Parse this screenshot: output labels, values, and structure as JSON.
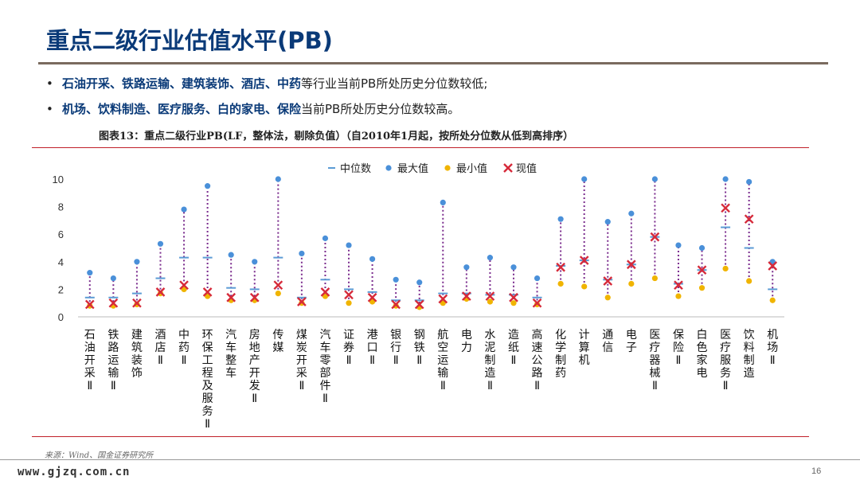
{
  "header": {
    "title": "重点二级行业估值水平(PB)",
    "bullets": [
      {
        "marker": "•",
        "highlight": "石油开采、铁路运输、建筑装饰、酒店、中药",
        "rest": "等行业当前PB所处历史分位数较低;"
      },
      {
        "marker": "•",
        "highlight": "机场、饮料制造、医疗服务、白的家电、保险",
        "rest": "当前PB所处历史分位数较高。"
      }
    ],
    "caption": "图表13：重点二级行业PB(LF，整体法，剔除负值）（自2010年1月起，按所处分位数从低到高排序）"
  },
  "footer": {
    "source": "来源：Wind、国金证券研究所",
    "site": "www.gjzq.com.cn",
    "page_number": "16"
  },
  "colors": {
    "title": "#0a3a78",
    "median": "#5b9bd5",
    "max": "#4a90d9",
    "min": "#f0b400",
    "current": "#d62a3a",
    "range": "#7b2d8e",
    "rule": "#c0202a"
  },
  "chart_data": {
    "type": "range-dot",
    "title": "",
    "ylim": [
      0,
      10
    ],
    "yticks": [
      0,
      2,
      4,
      6,
      8,
      10
    ],
    "legend": [
      "中位数",
      "最大值",
      "最小值",
      "现值"
    ],
    "legend_position": "top-right",
    "categories": [
      "石油开采Ⅱ",
      "铁路运输Ⅱ",
      "建筑装饰",
      "酒店Ⅱ",
      "中药Ⅱ",
      "环保工程及服务Ⅱ",
      "汽车整车",
      "房地产开发Ⅱ",
      "传媒",
      "煤炭开采Ⅱ",
      "汽车零部件Ⅱ",
      "证券Ⅱ",
      "港口Ⅱ",
      "银行Ⅱ",
      "钢铁Ⅱ",
      "航空运输Ⅱ",
      "电力",
      "水泥制造Ⅱ",
      "造纸Ⅱ",
      "高速公路Ⅱ",
      "化学制药",
      "计算机",
      "通信",
      "电子",
      "医疗器械Ⅱ",
      "保险Ⅱ",
      "白色家电",
      "医疗服务Ⅱ",
      "饮料制造",
      "机场Ⅱ"
    ],
    "series": [
      {
        "name": "中位数",
        "values": [
          1.4,
          1.4,
          1.7,
          2.8,
          4.3,
          4.3,
          2.1,
          2.0,
          4.3,
          1.4,
          2.7,
          2.0,
          1.8,
          1.2,
          1.2,
          1.7,
          1.7,
          1.6,
          1.6,
          1.4,
          3.7,
          4.1,
          2.7,
          3.8,
          5.8,
          2.4,
          3.4,
          6.5,
          5.0,
          2.0
        ]
      },
      {
        "name": "最大值",
        "values": [
          3.2,
          2.8,
          4.0,
          5.3,
          7.8,
          9.5,
          4.5,
          4.0,
          10.0,
          4.6,
          5.7,
          5.2,
          4.2,
          2.7,
          2.5,
          8.3,
          3.6,
          4.3,
          3.6,
          2.8,
          7.1,
          10.0,
          6.9,
          7.5,
          10.0,
          5.2,
          5.0,
          10.0,
          9.8,
          4.0
        ]
      },
      {
        "name": "最小值",
        "values": [
          0.8,
          0.8,
          0.9,
          1.7,
          2.0,
          1.5,
          1.2,
          1.2,
          1.7,
          1.0,
          1.5,
          1.0,
          1.1,
          0.8,
          0.7,
          1.0,
          1.3,
          1.1,
          1.0,
          0.9,
          2.4,
          2.2,
          1.4,
          2.4,
          2.8,
          1.5,
          2.1,
          3.5,
          2.6,
          1.2
        ]
      },
      {
        "name": "现值",
        "values": [
          0.9,
          1.0,
          1.0,
          1.8,
          2.3,
          1.8,
          1.4,
          1.4,
          2.3,
          1.1,
          1.8,
          1.6,
          1.4,
          0.9,
          0.9,
          1.3,
          1.5,
          1.5,
          1.4,
          1.0,
          3.6,
          4.1,
          2.6,
          3.8,
          5.8,
          2.3,
          3.4,
          7.9,
          7.1,
          3.7
        ]
      }
    ]
  }
}
